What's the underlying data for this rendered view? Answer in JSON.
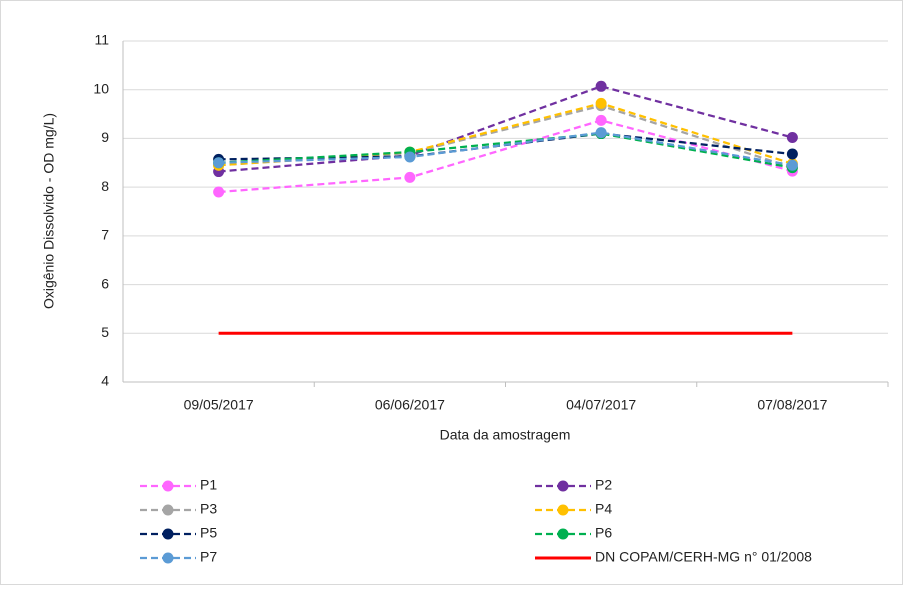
{
  "chart_data": {
    "type": "line",
    "y_label": "Oxigênio Dissolvido - OD mg/L)",
    "x_label": "Data da amostragem",
    "categories": [
      "09/05/2017",
      "06/06/2017",
      "04/07/2017",
      "07/08/2017"
    ],
    "ylim": [
      4,
      11
    ],
    "yticks": [
      4,
      5,
      6,
      7,
      8,
      9,
      10,
      11
    ],
    "grid": true,
    "series": [
      {
        "name": "P1",
        "color": "#ff66ff",
        "dashed": true,
        "markers": true,
        "values": [
          7.9,
          8.2,
          9.37,
          8.33
        ]
      },
      {
        "name": "P2",
        "color": "#7030a0",
        "dashed": true,
        "markers": true,
        "values": [
          8.32,
          8.65,
          10.07,
          9.02
        ]
      },
      {
        "name": "P3",
        "color": "#a5a5a5",
        "dashed": true,
        "markers": true,
        "values": [
          8.45,
          8.7,
          9.67,
          8.4
        ]
      },
      {
        "name": "P4",
        "color": "#ffc000",
        "dashed": true,
        "markers": true,
        "values": [
          8.45,
          8.72,
          9.72,
          8.48
        ]
      },
      {
        "name": "P5",
        "color": "#002060",
        "dashed": true,
        "markers": true,
        "values": [
          8.57,
          8.63,
          9.1,
          8.68
        ]
      },
      {
        "name": "P6",
        "color": "#00b050",
        "dashed": true,
        "markers": true,
        "values": [
          8.5,
          8.72,
          9.1,
          8.4
        ]
      },
      {
        "name": "P7",
        "color": "#5b9bd5",
        "dashed": true,
        "markers": true,
        "values": [
          8.5,
          8.62,
          9.12,
          8.45
        ]
      },
      {
        "name": "DN COPAM/CERH-MG n° 01/2008",
        "color": "#ff0000",
        "dashed": false,
        "markers": false,
        "values": [
          5,
          5,
          5,
          5
        ]
      }
    ]
  }
}
